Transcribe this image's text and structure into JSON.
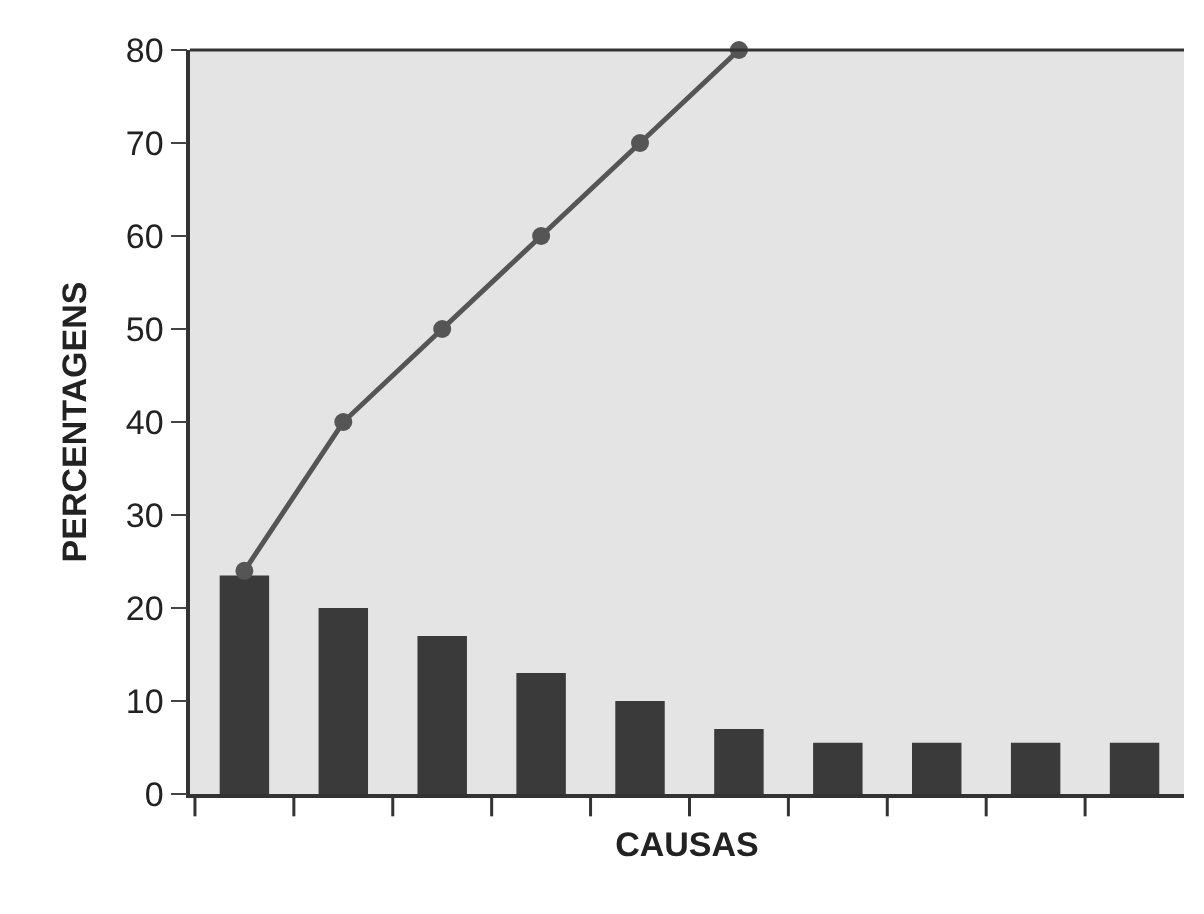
{
  "chart_data": {
    "type": "bar",
    "xlabel": "CAUSAS",
    "ylabel": "PERCENTAGENS",
    "categories": [
      null,
      null,
      null,
      null,
      null,
      null,
      null,
      null,
      null,
      null
    ],
    "series": [
      {
        "color": "#3a3a3a",
        "values": [
          23.5,
          20,
          17,
          13,
          10,
          7,
          5.5,
          5.5,
          5.5,
          5.5
        ]
      },
      {
        "type": "line",
        "color": "#555555",
        "marker": "circle",
        "values": [
          24,
          40,
          50,
          60,
          70,
          80,
          null,
          null,
          null,
          null
        ]
      }
    ],
    "ylim": [
      0,
      80
    ],
    "yticks": [
      0,
      10,
      20,
      30,
      40,
      50,
      60,
      70,
      80
    ],
    "grid": false
  }
}
